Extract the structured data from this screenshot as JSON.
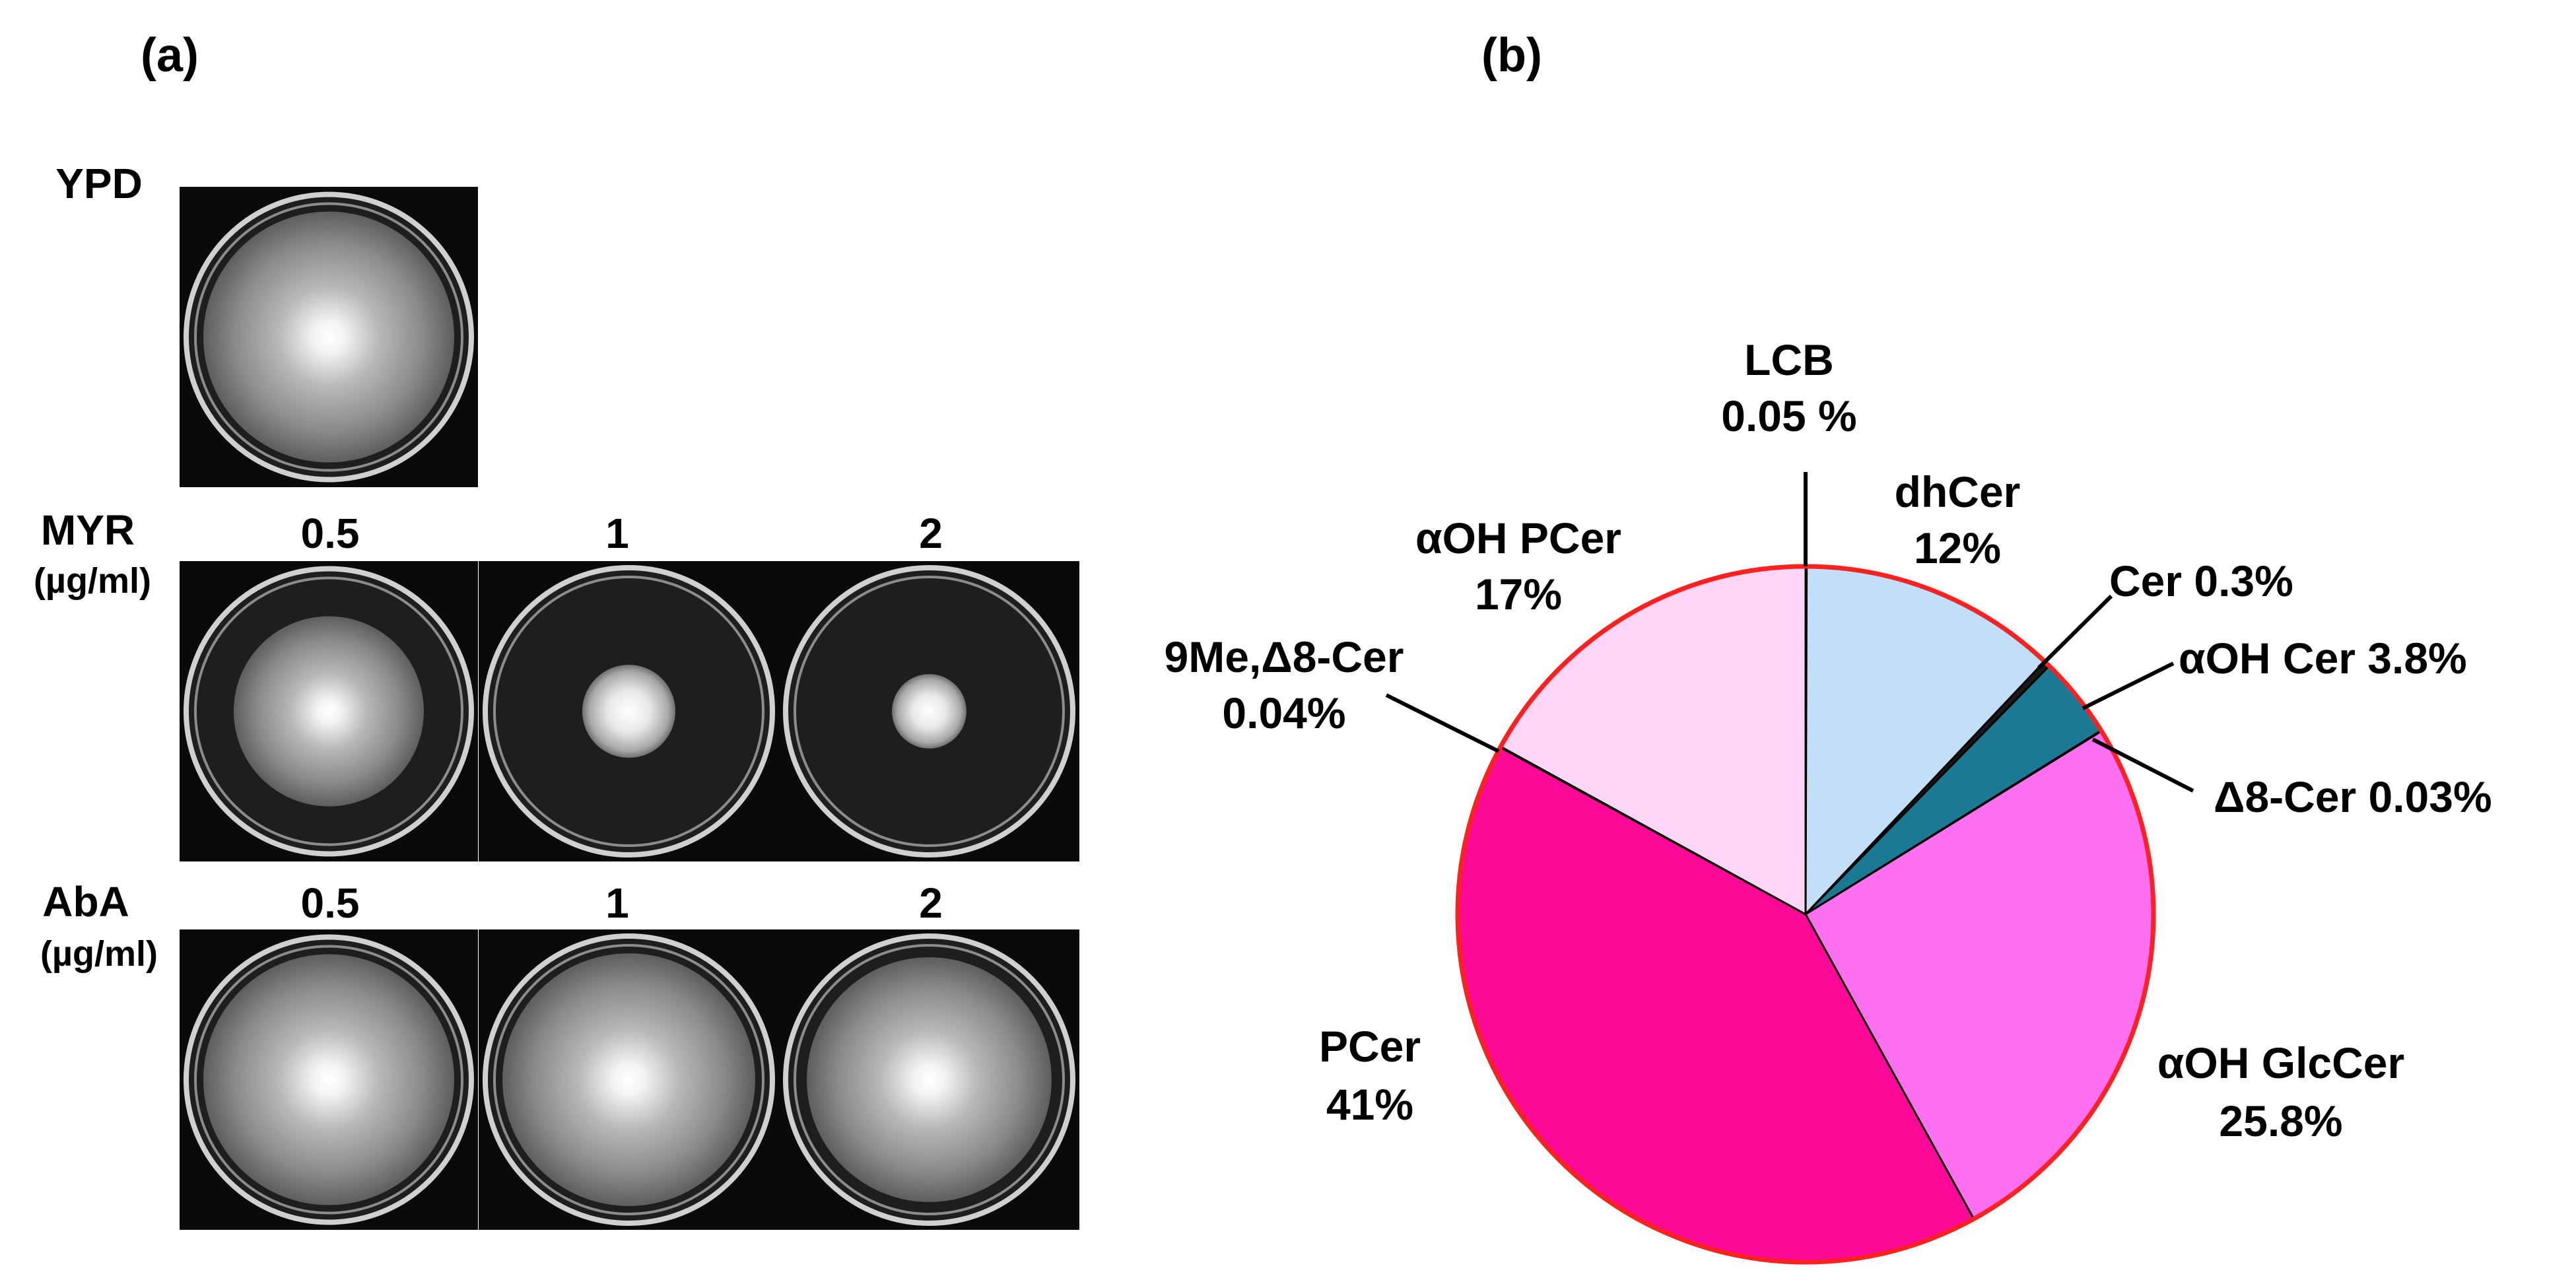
{
  "panel_a": {
    "label": "(a)",
    "rows": [
      {
        "name": "YPD",
        "unit": "",
        "concentrations": []
      },
      {
        "name": "MYR",
        "unit": "(µg/ml)",
        "concentrations": [
          "0.5",
          "1",
          "2"
        ]
      },
      {
        "name": "AbA",
        "unit": "(µg/ml)",
        "concentrations": [
          "0.5",
          "1",
          "2"
        ]
      }
    ],
    "plates": [
      {
        "row": "YPD",
        "concentration": "",
        "colony": 0.95
      },
      {
        "row": "MYR",
        "concentration": "0.5",
        "colony": 0.72
      },
      {
        "row": "MYR",
        "concentration": "1",
        "colony": 0.35
      },
      {
        "row": "MYR",
        "concentration": "2",
        "colony": 0.28
      },
      {
        "row": "AbA",
        "concentration": "0.5",
        "colony": 0.95
      },
      {
        "row": "AbA",
        "concentration": "1",
        "colony": 0.95
      },
      {
        "row": "AbA",
        "concentration": "2",
        "colony": 0.92
      }
    ]
  },
  "panel_b": {
    "label": "(b)"
  },
  "chart_data": {
    "type": "pie",
    "start": "12 o'clock",
    "direction": "clockwise",
    "slices": [
      {
        "name": "LCB",
        "value_label": "0.05 %",
        "value": 0.05,
        "color": "#ffffff"
      },
      {
        "name": "dhCer",
        "value_label": "12%",
        "value": 12,
        "color": "#c3dff8"
      },
      {
        "name": "Cer",
        "value_label": "0.3%",
        "value": 0.3,
        "color": "#1a1a1a"
      },
      {
        "name": "αOH Cer",
        "value_label": "3.8%",
        "value": 3.8,
        "color": "#1a7a94"
      },
      {
        "name": "Δ8-Cer",
        "value_label": "0.03%",
        "value": 0.03,
        "color": "#ff70f0"
      },
      {
        "name": "αOH GlcCer",
        "value_label": "25.8%",
        "value": 25.8,
        "color": "#ff70f0"
      },
      {
        "name": "PCer",
        "value_label": "41%",
        "value": 41,
        "color": "#ff0a98"
      },
      {
        "name": "9Me,Δ8-Cer",
        "value_label": "0.04%",
        "value": 0.04,
        "color": "#ffd6f8"
      },
      {
        "name": "αOH PCer",
        "value_label": "17%",
        "value": 17,
        "color": "#ffd6f8"
      }
    ],
    "outline_color": "#ff2020",
    "divider_color": "#000000"
  }
}
